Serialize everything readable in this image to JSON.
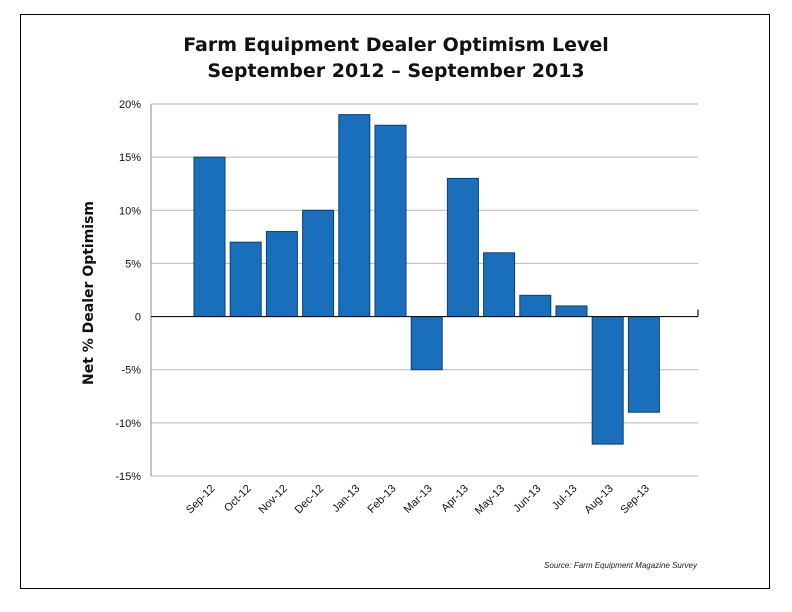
{
  "chart_data": {
    "type": "bar",
    "title": "Farm Equipment Dealer Optimism Level",
    "subtitle": "September 2012 – September 2013",
    "ylabel": "Net % Dealer Optimism",
    "xlabel": "",
    "categories": [
      "Sep-12",
      "Oct-12",
      "Nov-12",
      "Dec-12",
      "Jan-13",
      "Feb-13",
      "Mar-13",
      "Apr-13",
      "May-13",
      "Jun-13",
      "Jul-13",
      "Aug-13",
      "Sep-13"
    ],
    "values": [
      15,
      7,
      8,
      10,
      19,
      18,
      -5,
      13,
      6,
      2,
      1,
      -12,
      -9
    ],
    "ylim": [
      -15,
      20
    ],
    "yticks": [
      20,
      15,
      10,
      5,
      0,
      -5,
      -10,
      -15
    ],
    "ytick_labels": [
      "20%",
      "15%",
      "10%",
      "5%",
      "0",
      "-5%",
      "-10%",
      "-15%"
    ],
    "grid": true,
    "bar_color": "#1a6fbd",
    "source": "Source: Farm Equipment Magazine Survey"
  }
}
